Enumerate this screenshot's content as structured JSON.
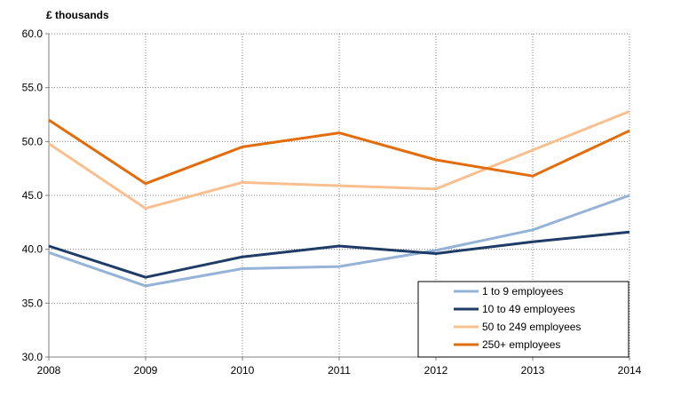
{
  "chart_data": {
    "type": "line",
    "title": "",
    "xlabel": "",
    "ylabel": "£ thousands",
    "x": [
      "2008",
      "2009",
      "2010",
      "2011",
      "2012",
      "2013",
      "2014"
    ],
    "ylim": [
      30.0,
      60.0
    ],
    "yticks": [
      "60.0",
      "55.0",
      "50.0",
      "45.0",
      "40.0",
      "35.0",
      "30.0"
    ],
    "grid": "dotted, both axes",
    "legend_position": "bottom-right",
    "series": [
      {
        "name": "1 to 9 employees",
        "color": "#95b3d7",
        "values": [
          39.7,
          36.6,
          38.2,
          38.4,
          39.9,
          41.8,
          45.0
        ]
      },
      {
        "name": "10 to 49 employees",
        "color": "#1f3c67",
        "values": [
          40.3,
          37.4,
          39.3,
          40.3,
          39.6,
          40.7,
          41.6
        ]
      },
      {
        "name": "50 to 249 employees",
        "color": "#f9bf8f",
        "values": [
          49.8,
          43.8,
          46.2,
          45.9,
          45.6,
          49.2,
          52.8
        ]
      },
      {
        "name": "250+ employees",
        "color": "#e36c0a",
        "values": [
          52.0,
          46.1,
          49.5,
          50.8,
          48.3,
          46.8,
          51.0
        ]
      }
    ]
  }
}
